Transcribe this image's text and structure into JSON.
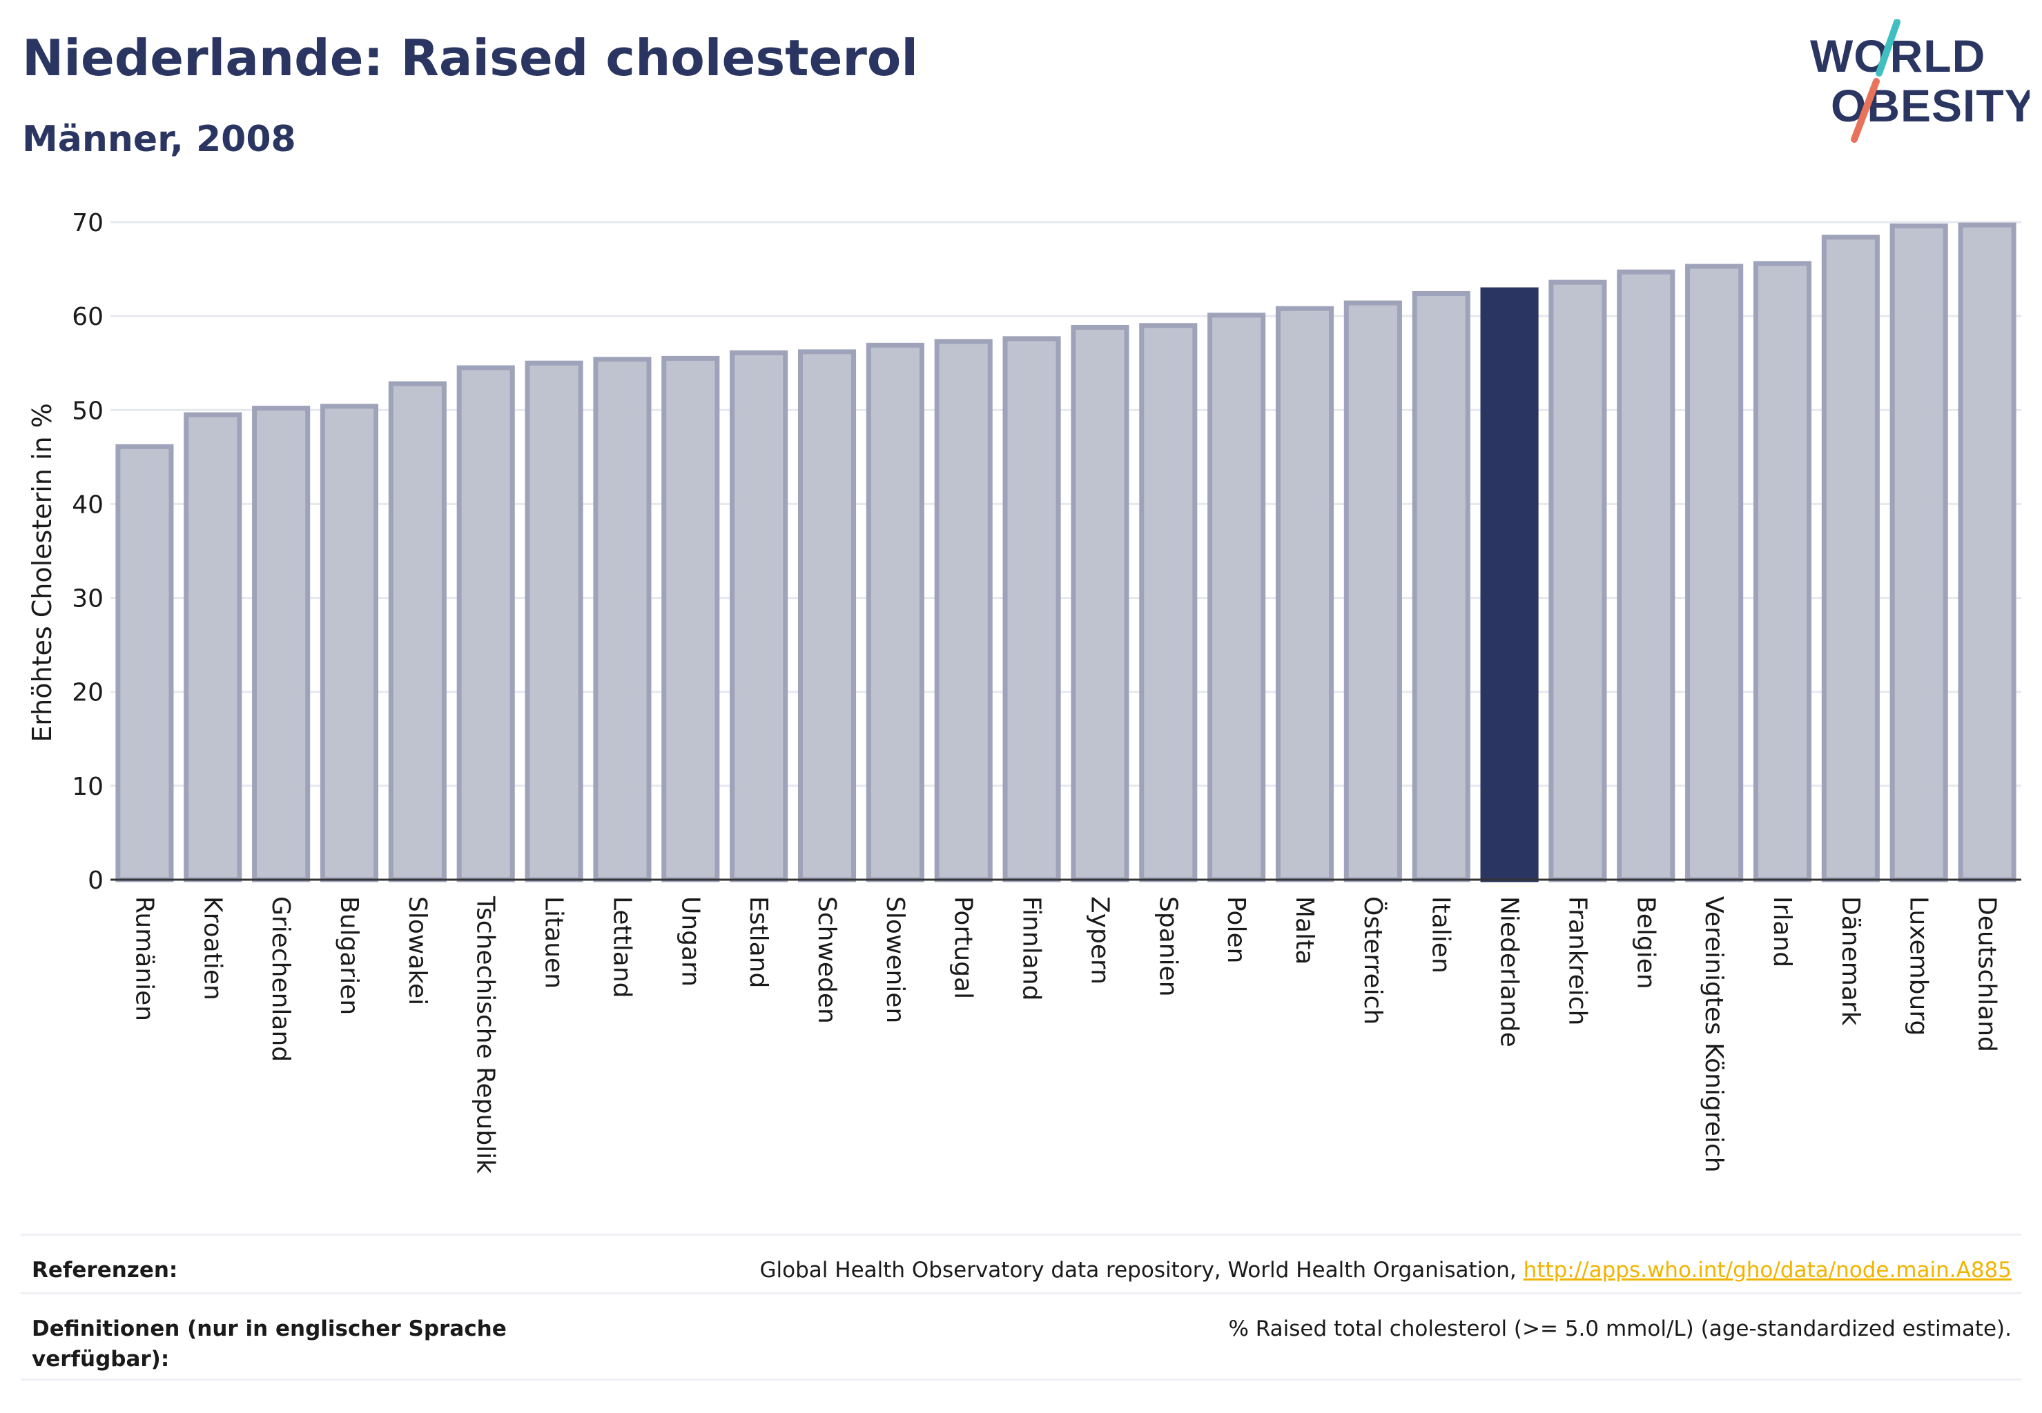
{
  "header": {
    "title": "Niederlande: Raised cholesterol",
    "subtitle": "Männer, 2008"
  },
  "logo": {
    "line1": "WORLD",
    "line2": "OBESITY",
    "colors": {
      "text": "#2a3561",
      "slash_top": "#3fbfbf",
      "slash_bottom": "#e8735a"
    }
  },
  "colors": {
    "bar_fill": "#bfc2cf",
    "bar_stroke": "#9ea3b9",
    "highlight": "#2a3561",
    "grid": "#e6e8ef",
    "axis": "#333333"
  },
  "chart_data": {
    "type": "bar",
    "title": "Niederlande: Raised cholesterol",
    "subtitle": "Männer, 2008",
    "xlabel": "",
    "ylabel": "Erhöhtes Cholesterin in %",
    "ylim": [
      0,
      70
    ],
    "yticks": [
      0,
      10,
      20,
      30,
      40,
      50,
      60,
      70
    ],
    "grid": true,
    "highlight": "Niederlande",
    "categories": [
      "Rumänien",
      "Kroatien",
      "Griechenland",
      "Bulgarien",
      "Slowakei",
      "Tschechische Republik",
      "Litauen",
      "Lettland",
      "Ungarn",
      "Estland",
      "Schweden",
      "Slowenien",
      "Portugal",
      "Finnland",
      "Zypern",
      "Spanien",
      "Polen",
      "Malta",
      "Österreich",
      "Italien",
      "Niederlande",
      "Frankreich",
      "Belgien",
      "Vereinigtes Königreich",
      "Irland",
      "Dänemark",
      "Luxemburg",
      "Deutschland"
    ],
    "values": [
      46.1,
      49.5,
      50.2,
      50.4,
      52.8,
      54.5,
      55.0,
      55.4,
      55.5,
      56.1,
      56.2,
      56.9,
      57.3,
      57.6,
      58.8,
      59.0,
      60.1,
      60.8,
      61.4,
      62.4,
      62.8,
      63.6,
      64.7,
      65.3,
      65.6,
      68.4,
      69.6,
      69.7
    ]
  },
  "references": {
    "ref_label": "Referenzen:",
    "ref_text": "Global Health Observatory data repository, World Health Organisation, ",
    "ref_link": "http://apps.who.int/gho/data/node.main.A885",
    "def_label": "Definitionen (nur in englischer Sprache verfügbar):",
    "def_text": "% Raised total cholesterol (>= 5.0 mmol/L) (age-standardized estimate)."
  }
}
